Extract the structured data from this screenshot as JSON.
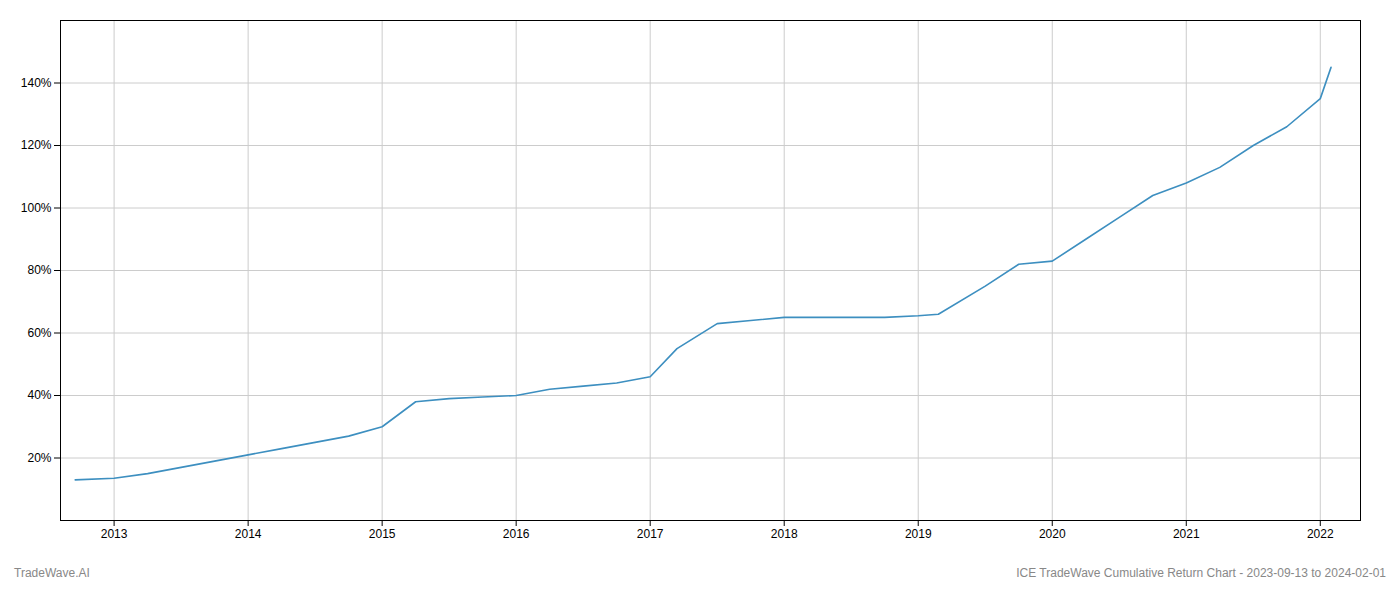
{
  "chart_data": {
    "type": "line",
    "title": "ICE TradeWave Cumulative Return Chart - 2023-09-13 to 2024-02-01",
    "annotations": [
      "TradeWave.AI"
    ],
    "color": "#3d8fc0",
    "x": [
      2012.71,
      2013.0,
      2013.25,
      2013.5,
      2013.75,
      2014.0,
      2014.25,
      2014.5,
      2014.75,
      2015.0,
      2015.25,
      2015.5,
      2015.75,
      2016.0,
      2016.25,
      2016.5,
      2016.75,
      2017.0,
      2017.2,
      2017.5,
      2017.75,
      2018.0,
      2018.25,
      2018.5,
      2018.75,
      2019.0,
      2019.15,
      2019.5,
      2019.75,
      2020.0,
      2020.25,
      2020.5,
      2020.75,
      2021.0,
      2021.25,
      2021.5,
      2021.75,
      2022.0,
      2022.08
    ],
    "values": [
      13,
      13.5,
      15,
      17,
      19,
      21,
      23,
      25,
      27,
      30,
      38,
      39,
      39.5,
      40,
      42,
      43,
      44,
      46,
      55,
      63,
      64,
      65,
      65,
      65,
      65,
      65.5,
      66,
      75,
      82,
      83,
      90,
      97,
      104,
      108,
      113,
      120,
      126,
      135,
      145
    ],
    "xlim": [
      2012.6,
      2022.3
    ],
    "xticks": [
      2013,
      2014,
      2015,
      2016,
      2017,
      2018,
      2019,
      2020,
      2021,
      2022
    ],
    "ylim": [
      0,
      160
    ],
    "yticks": [
      {
        "value": 20,
        "label": "20%"
      },
      {
        "value": 40,
        "label": "40%"
      },
      {
        "value": 60,
        "label": "60%"
      },
      {
        "value": 80,
        "label": "80%"
      },
      {
        "value": 100,
        "label": "100%"
      },
      {
        "value": 120,
        "label": "120%"
      },
      {
        "value": 140,
        "label": "140%"
      }
    ],
    "grid": true
  }
}
